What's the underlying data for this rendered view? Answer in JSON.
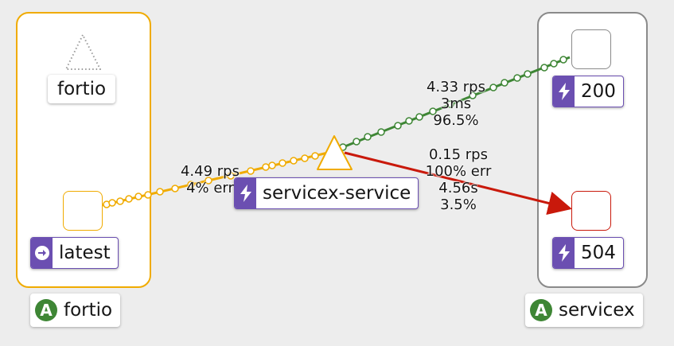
{
  "groups": {
    "left": {
      "label": "fortio",
      "badge": "A"
    },
    "right": {
      "label": "servicex",
      "badge": "A"
    }
  },
  "nodes": {
    "fortio": {
      "label": "fortio"
    },
    "latest": {
      "label": "latest"
    },
    "service": {
      "label": "servicex-service"
    },
    "v200": {
      "label": "200"
    },
    "v504": {
      "label": "504"
    }
  },
  "edges": {
    "fortio_to_service": {
      "line1": "4.49 rps",
      "line2": "4% err"
    },
    "service_to_200": {
      "line1": "4.33 rps",
      "line2": "3ms",
      "line3": "96.5%"
    },
    "service_to_504": {
      "line1": "0.15 rps",
      "line2": "100% err",
      "line3": "4.56s",
      "line4": "3.5%"
    }
  },
  "colors": {
    "app_border": "#f0ab00",
    "group_border": "#8a8a8a",
    "ok_edge": "#3e8635",
    "error_edge": "#c9190b",
    "badge": "#6b4fb1"
  },
  "icons": {
    "service": "bolt-icon",
    "workload": "arrow-circle-right-icon",
    "app": "app-badge-icon",
    "unused_node": "dotted-triangle-icon"
  }
}
